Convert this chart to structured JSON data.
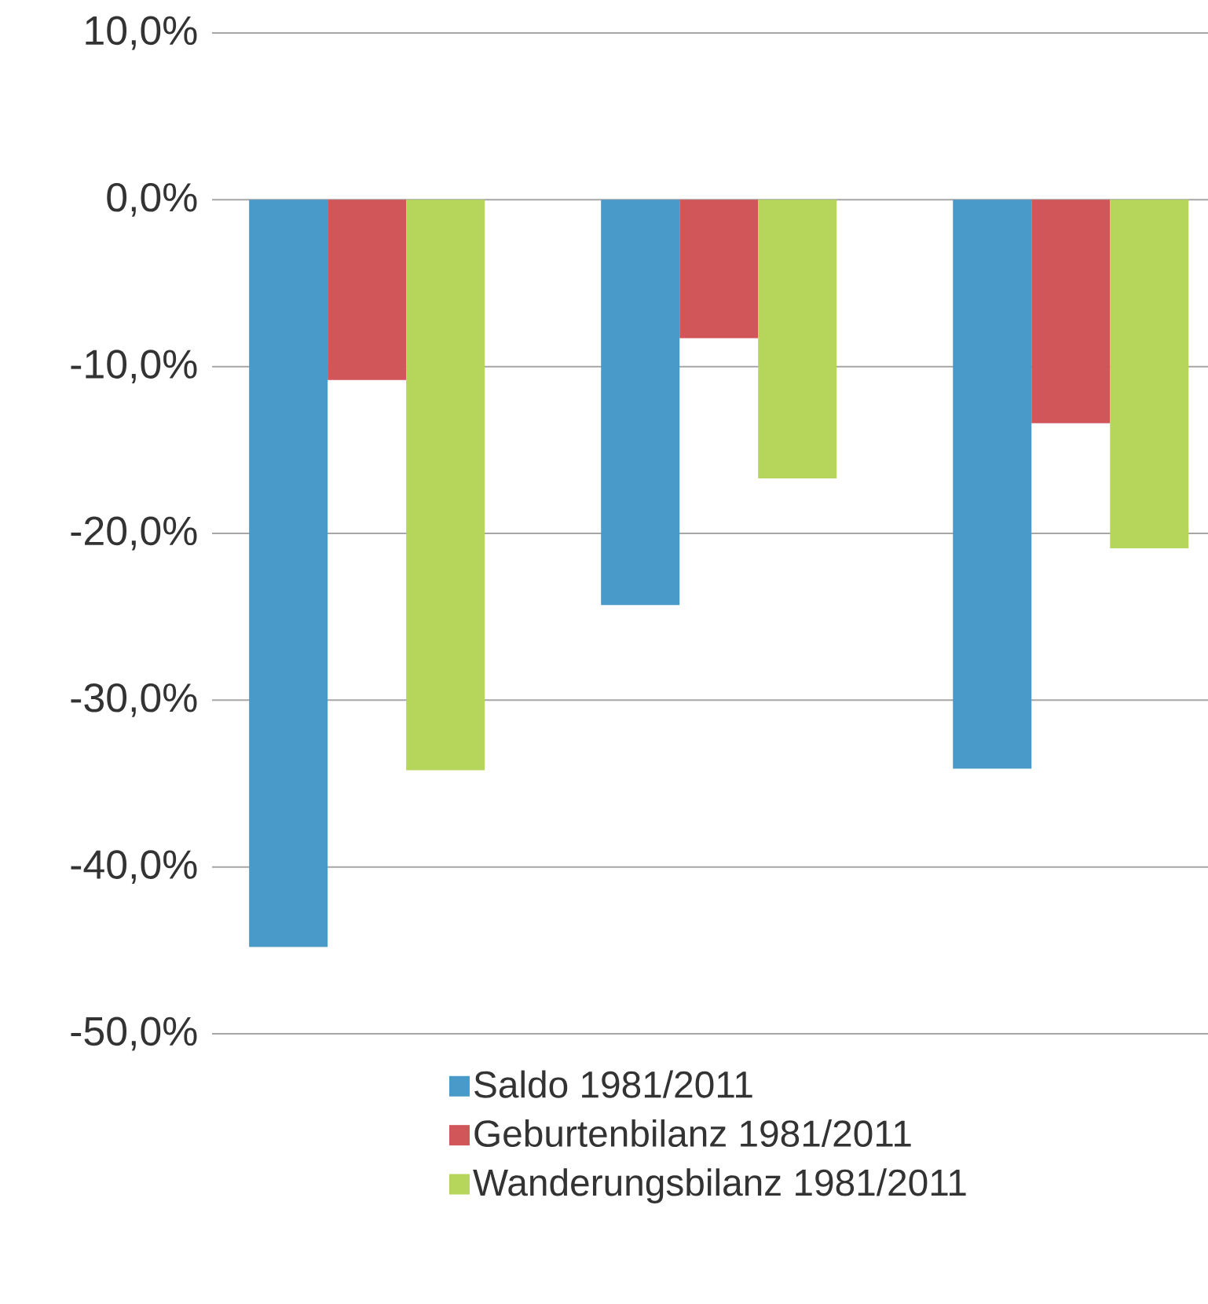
{
  "chart_data": {
    "type": "bar",
    "categories": [
      null,
      null,
      null
    ],
    "series": [
      {
        "name": "Saldo 1981/2011",
        "color": "#4a9ac9",
        "values": [
          -44.8,
          -24.3,
          -34.1
        ]
      },
      {
        "name": "Geburtenbilanz 1981/2011",
        "color": "#d0565a",
        "values": [
          -10.8,
          -8.3,
          -13.4
        ]
      },
      {
        "name": "Wanderungsbilanz 1981/2011",
        "color": "#b5d65a",
        "values": [
          -34.2,
          -16.7,
          -20.9
        ]
      }
    ],
    "ylim": [
      -50,
      10
    ],
    "yticks": [
      {
        "value": 10,
        "label": "10,0%"
      },
      {
        "value": 0,
        "label": "0,0%"
      },
      {
        "value": -10,
        "label": "-10,0%"
      },
      {
        "value": -20,
        "label": "-20,0%"
      },
      {
        "value": -30,
        "label": "-30,0%"
      },
      {
        "value": -40,
        "label": "-40,0%"
      },
      {
        "value": -50,
        "label": "-50,0%"
      }
    ],
    "grid": "y",
    "legend": "bottom"
  }
}
